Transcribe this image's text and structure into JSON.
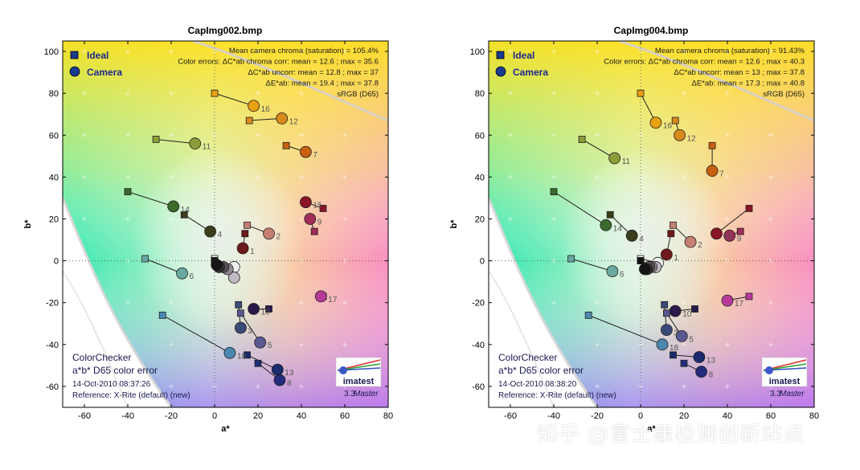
{
  "chart_data": [
    {
      "type": "scatter",
      "title": "CapImg002.bmp",
      "xlabel": "a*",
      "ylabel": "b*",
      "xlim": [
        -70,
        80
      ],
      "ylim": [
        -70,
        105
      ],
      "xticks": [
        -60,
        -40,
        -20,
        0,
        20,
        40,
        60,
        80
      ],
      "yticks": [
        -60,
        -40,
        -20,
        0,
        20,
        40,
        60,
        80,
        100
      ],
      "xtick_labels": [
        "-60",
        "-40",
        "-20",
        "0",
        "20",
        "40",
        "60",
        "80"
      ],
      "ytick_labels": [
        "-60",
        "-40",
        "-20",
        "0",
        "20",
        "40",
        "60",
        "80",
        "100"
      ],
      "legend": {
        "position": "top-left",
        "ideal": "Ideal",
        "camera": "Camera"
      },
      "stats": [
        "Mean camera chroma (saturation) = 105.4%",
        "Color errors: ΔC*ab chroma corr:  mean = 12.6 ;  max = 35.6",
        "ΔC*ab uncorr:  mean = 12.8 ;  max = 37",
        "ΔE*ab:  mean = 19.4 ;  max = 37.8",
        "sRGB (D65)"
      ],
      "footer": [
        "ColorChecker",
        "a*b* D65 color error",
        "14-Oct-2010 08:37:26",
        "Reference: X-Rite (default) (new)"
      ],
      "logo": {
        "text": "imatest",
        "version": "3.3",
        "edition": "Master"
      },
      "patches": [
        {
          "id": "1",
          "ideal": [
            14,
            13
          ],
          "camera": [
            13,
            6
          ],
          "color": "#6e1a1a"
        },
        {
          "id": "2",
          "ideal": [
            15,
            17
          ],
          "camera": [
            25,
            13
          ],
          "color": "#c48070"
        },
        {
          "id": "4",
          "ideal": [
            -14,
            22
          ],
          "camera": [
            -2,
            14
          ],
          "color": "#3a3e1c"
        },
        {
          "id": "6",
          "ideal": [
            -32,
            1
          ],
          "camera": [
            -15,
            -6
          ],
          "color": "#6aa8a0"
        },
        {
          "id": "7",
          "ideal": [
            33,
            55
          ],
          "camera": [
            42,
            52
          ],
          "color": "#c86010"
        },
        {
          "id": "8",
          "ideal": [
            20,
            -49
          ],
          "camera": [
            30,
            -57
          ],
          "color": "#222c7a"
        },
        {
          "id": "9",
          "ideal": [
            46,
            14
          ],
          "camera": [
            44,
            20
          ],
          "color": "#a02c58"
        },
        {
          "id": "10",
          "ideal": [
            25,
            -23
          ],
          "camera": [
            18,
            -23
          ],
          "color": "#2a1a4a"
        },
        {
          "id": "11",
          "ideal": [
            -27,
            58
          ],
          "camera": [
            -9,
            56
          ],
          "color": "#8c9c38"
        },
        {
          "id": "12",
          "ideal": [
            16,
            67
          ],
          "camera": [
            31,
            68
          ],
          "color": "#d88a1c"
        },
        {
          "id": "13",
          "ideal": [
            15,
            -45
          ],
          "camera": [
            29,
            -52
          ],
          "color": "#1a2a6c"
        },
        {
          "id": "14",
          "ideal": [
            -40,
            33
          ],
          "camera": [
            -19,
            26
          ],
          "color": "#3a6a2c"
        },
        {
          "id": "15",
          "ideal": [
            50,
            25
          ],
          "camera": [
            42,
            28
          ],
          "color": "#8a1428"
        },
        {
          "id": "16",
          "ideal": [
            0,
            80
          ],
          "camera": [
            18,
            74
          ],
          "color": "#e8a010"
        },
        {
          "id": "17",
          "ideal": [
            50,
            -17
          ],
          "camera": [
            49,
            -17
          ],
          "color": "#b83a98"
        },
        {
          "id": "18",
          "ideal": [
            -24,
            -26
          ],
          "camera": [
            7,
            -44
          ],
          "color": "#4a88b0"
        },
        {
          "id": "3",
          "ideal": [
            11,
            -21
          ],
          "camera": [
            12,
            -32
          ],
          "color": "#3a4a78"
        },
        {
          "id": "5",
          "ideal": [
            12,
            -25
          ],
          "camera": [
            21,
            -39
          ],
          "color": "#5a5890"
        },
        {
          "id": "19",
          "ideal": [
            0,
            1
          ],
          "camera": [
            9,
            -3
          ],
          "color": "#f0f0f0"
        },
        {
          "id": "20",
          "ideal": [
            0,
            0
          ],
          "camera": [
            9,
            -8
          ],
          "color": "#c0b8c0"
        },
        {
          "id": "21",
          "ideal": [
            0,
            0
          ],
          "camera": [
            6,
            -4
          ],
          "color": "#908890"
        },
        {
          "id": "22",
          "ideal": [
            0,
            0
          ],
          "camera": [
            4,
            -3
          ],
          "color": "#585058"
        },
        {
          "id": "23",
          "ideal": [
            0,
            0
          ],
          "camera": [
            2,
            -3
          ],
          "color": "#303030"
        },
        {
          "id": "24",
          "ideal": [
            0,
            0
          ],
          "camera": [
            1,
            -2
          ],
          "color": "#141414"
        }
      ]
    },
    {
      "type": "scatter",
      "title": "CapImg004.bmp",
      "xlabel": "a*",
      "ylabel": "b*",
      "xlim": [
        -70,
        80
      ],
      "ylim": [
        -70,
        105
      ],
      "xticks": [
        -60,
        -40,
        -20,
        0,
        20,
        40,
        60,
        80
      ],
      "yticks": [
        -60,
        -40,
        -20,
        0,
        20,
        40,
        60,
        80,
        100
      ],
      "xtick_labels": [
        "-60",
        "-40",
        "-20",
        "0",
        "20",
        "40",
        "60",
        "80"
      ],
      "ytick_labels": [
        "-60",
        "-40",
        "-20",
        "0",
        "20",
        "40",
        "60",
        "80",
        "100"
      ],
      "legend": {
        "position": "top-left",
        "ideal": "Ideal",
        "camera": "Camera"
      },
      "stats": [
        "Mean camera chroma (saturation) = 91.43%",
        "Color errors: ΔC*ab chroma corr:  mean = 12.6 ;  max = 40.3",
        "ΔC*ab uncorr:  mean = 13 ;  max = 37.8",
        "ΔE*ab:  mean = 17.3 ;  max = 40.8",
        "sRGB (D65)"
      ],
      "footer": [
        "ColorChecker",
        "a*b* D65 color error",
        "14-Oct-2010 08:38:20",
        "Reference: X-Rite (default) (new)"
      ],
      "logo": {
        "text": "imatest",
        "version": "3.3",
        "edition": "Master"
      },
      "patches": [
        {
          "id": "1",
          "ideal": [
            14,
            13
          ],
          "camera": [
            12,
            3
          ],
          "color": "#6e1a1a"
        },
        {
          "id": "2",
          "ideal": [
            15,
            17
          ],
          "camera": [
            23,
            9
          ],
          "color": "#c48070"
        },
        {
          "id": "4",
          "ideal": [
            -14,
            22
          ],
          "camera": [
            -4,
            12
          ],
          "color": "#3a3e1c"
        },
        {
          "id": "6",
          "ideal": [
            -32,
            1
          ],
          "camera": [
            -13,
            -5
          ],
          "color": "#6aa8a0"
        },
        {
          "id": "7",
          "ideal": [
            33,
            55
          ],
          "camera": [
            33,
            43
          ],
          "color": "#c86010"
        },
        {
          "id": "8",
          "ideal": [
            20,
            -49
          ],
          "camera": [
            28,
            -53
          ],
          "color": "#222c7a"
        },
        {
          "id": "9",
          "ideal": [
            46,
            14
          ],
          "camera": [
            41,
            12
          ],
          "color": "#a02c58"
        },
        {
          "id": "10",
          "ideal": [
            25,
            -23
          ],
          "camera": [
            16,
            -24
          ],
          "color": "#2a1a4a"
        },
        {
          "id": "11",
          "ideal": [
            -27,
            58
          ],
          "camera": [
            -12,
            49
          ],
          "color": "#8c9c38"
        },
        {
          "id": "12",
          "ideal": [
            16,
            67
          ],
          "camera": [
            18,
            60
          ],
          "color": "#d88a1c"
        },
        {
          "id": "13",
          "ideal": [
            15,
            -45
          ],
          "camera": [
            27,
            -46
          ],
          "color": "#1a2a6c"
        },
        {
          "id": "14",
          "ideal": [
            -40,
            33
          ],
          "camera": [
            -16,
            17
          ],
          "color": "#3a6a2c"
        },
        {
          "id": "15",
          "ideal": [
            50,
            25
          ],
          "camera": [
            35,
            13
          ],
          "color": "#8a1428"
        },
        {
          "id": "16",
          "ideal": [
            0,
            80
          ],
          "camera": [
            7,
            66
          ],
          "color": "#e8a010"
        },
        {
          "id": "17",
          "ideal": [
            50,
            -17
          ],
          "camera": [
            40,
            -19
          ],
          "color": "#b83a98"
        },
        {
          "id": "18",
          "ideal": [
            -24,
            -26
          ],
          "camera": [
            10,
            -40
          ],
          "color": "#4a88b0"
        },
        {
          "id": "3",
          "ideal": [
            11,
            -21
          ],
          "camera": [
            12,
            -33
          ],
          "color": "#3a4a78"
        },
        {
          "id": "5",
          "ideal": [
            12,
            -25
          ],
          "camera": [
            19,
            -36
          ],
          "color": "#5a5890"
        },
        {
          "id": "19",
          "ideal": [
            0,
            1
          ],
          "camera": [
            8,
            -1
          ],
          "color": "#f0f0f0"
        },
        {
          "id": "20",
          "ideal": [
            0,
            0
          ],
          "camera": [
            7,
            -3
          ],
          "color": "#c0b8c0"
        },
        {
          "id": "21",
          "ideal": [
            0,
            0
          ],
          "camera": [
            5,
            -3
          ],
          "color": "#908890"
        },
        {
          "id": "22",
          "ideal": [
            0,
            0
          ],
          "camera": [
            4,
            -3
          ],
          "color": "#585058"
        },
        {
          "id": "23",
          "ideal": [
            0,
            0
          ],
          "camera": [
            3,
            -4
          ],
          "color": "#303030"
        },
        {
          "id": "24",
          "ideal": [
            0,
            0
          ],
          "camera": [
            2,
            -4
          ],
          "color": "#141414"
        }
      ]
    }
  ],
  "watermark": "知乎 @富士康检测创新站点"
}
